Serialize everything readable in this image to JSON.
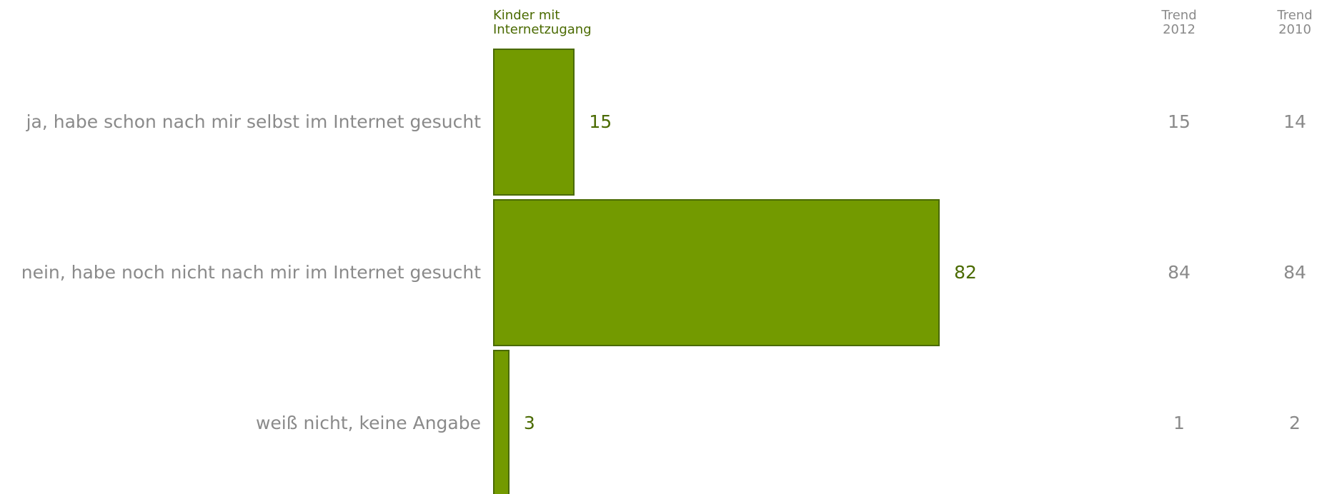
{
  "chart_data": {
    "type": "bar",
    "orientation": "horizontal",
    "categories": [
      "ja, habe schon nach mir selbst im Internet gesucht",
      "nein, habe noch nicht nach mir im Internet gesucht",
      "weiß nicht, keine Angabe"
    ],
    "series": [
      {
        "name": "Kinder mit Internetzugang",
        "color": "#739a00",
        "values": [
          15,
          82,
          3
        ]
      }
    ],
    "trend_columns": [
      {
        "name": "Trend 2012",
        "values": [
          15,
          84,
          1
        ]
      },
      {
        "name": "Trend 2010",
        "values": [
          14,
          84,
          2
        ]
      }
    ]
  }
}
